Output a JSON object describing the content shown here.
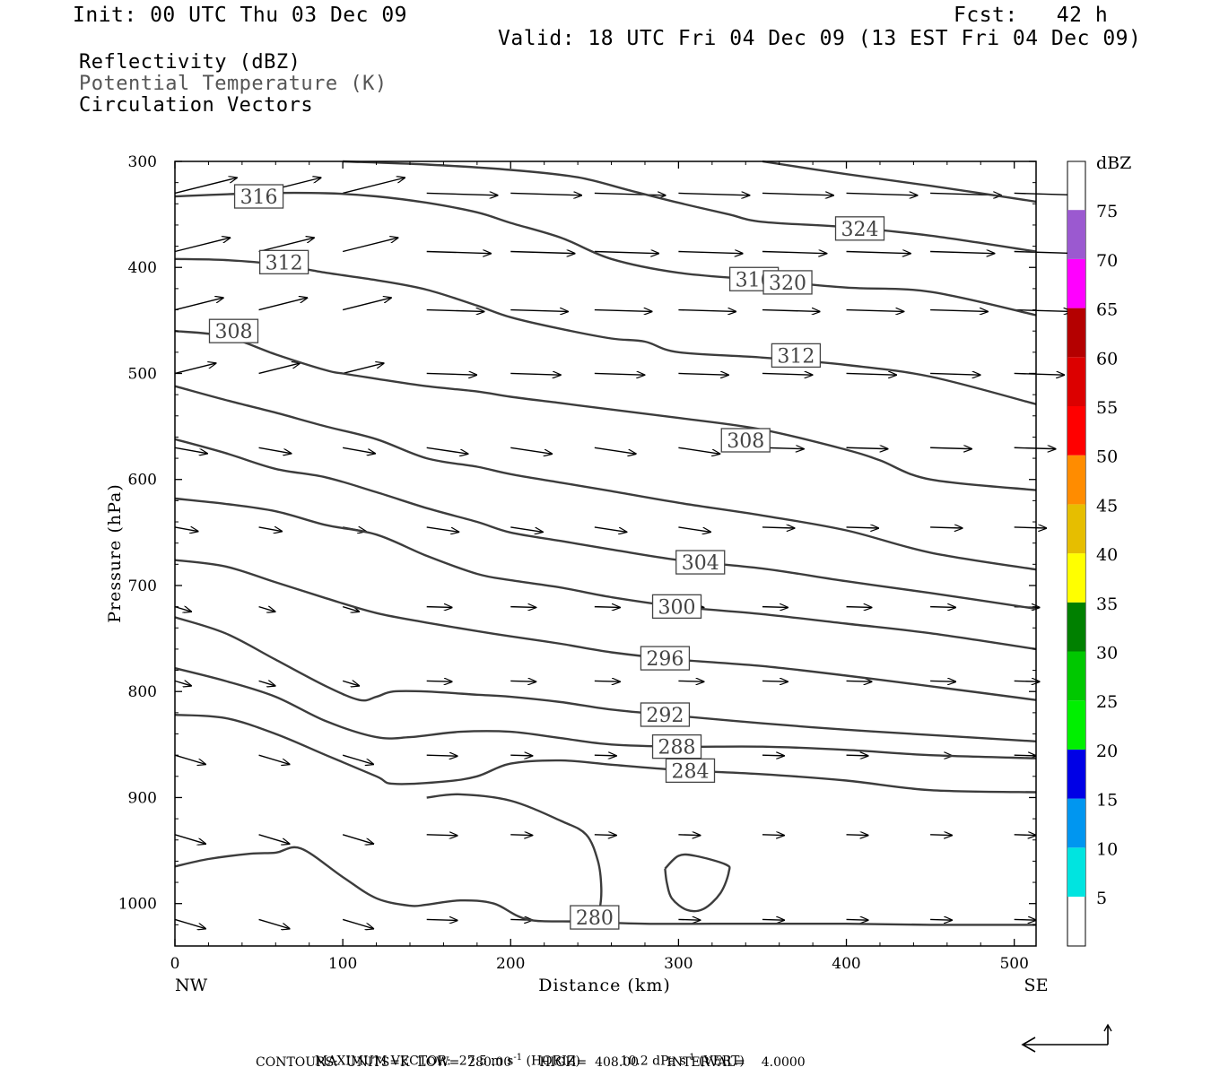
{
  "header": {
    "init": "Init: 00 UTC Thu 03 Dec 09",
    "fcst": "Fcst:   42 h",
    "valid": "Valid: 18 UTC Fri 04 Dec 09 (13 EST Fri 04 Dec 09)"
  },
  "fields": {
    "reflectivity": "Reflectivity (dBZ)",
    "potential_temperature": "Potential Temperature (K)",
    "circulation": "Circulation Vectors"
  },
  "footer": {
    "max_vector_label": "MAXIMUM VECTOR:",
    "max_vector_horiz": "27.5 m s",
    "horiz_exp": "-1",
    "horiz_tag": "(HORIZ)",
    "max_vector_vert": "10.2 dPa s",
    "vert_exp": "-1",
    "vert_tag": "(VERT)",
    "contours": "CONTOURS:  UNITS=K  LOW=  280.00       HIGH=  408.00       INTERVAL=    4.0000"
  },
  "chart_data": {
    "type": "line",
    "title": "Potential Temperature (K)",
    "xlabel": "Distance (km)",
    "ylabel": "Pressure (hPa)",
    "xlim": [
      0,
      513
    ],
    "ylim": [
      300,
      1040
    ],
    "y_inverted": true,
    "x_ticks": [
      0,
      100,
      200,
      300,
      400,
      500
    ],
    "y_ticks": [
      300,
      400,
      500,
      600,
      700,
      800,
      900,
      1000
    ],
    "x_end_labels": {
      "left": "NW",
      "right": "SE"
    },
    "contour_units": "K",
    "contour_low": 280.0,
    "contour_high": 408.0,
    "contour_interval": 4.0,
    "isentropes": [
      {
        "theta": 280,
        "label": "280",
        "x": [
          0,
          20,
          45,
          60,
          75,
          100,
          120,
          140,
          150,
          170,
          190,
          210,
          240,
          280,
          320,
          360,
          400,
          450,
          513
        ],
        "p": [
          965,
          958,
          953,
          952,
          948,
          975,
          995,
          1002,
          1001,
          997,
          1000,
          1015,
          1017,
          1019,
          1019,
          1019,
          1019,
          1020,
          1020
        ]
      },
      {
        "theta": 280,
        "label": "",
        "x": [
          150,
          170,
          200,
          230,
          245,
          252,
          254,
          253,
          250
        ],
        "p": [
          900,
          897,
          903,
          922,
          935,
          960,
          985,
          1005,
          1015
        ]
      },
      {
        "theta": 280,
        "label": "",
        "x": [
          292,
          300,
          310,
          328,
          330,
          325,
          315,
          305,
          296,
          293,
          292
        ],
        "p": [
          967,
          955,
          955,
          963,
          970,
          990,
          1005,
          1006,
          995,
          980,
          967
        ]
      },
      {
        "theta": 284,
        "label": "284",
        "x": [
          0,
          30,
          60,
          90,
          120,
          130,
          160,
          180,
          200,
          230,
          260,
          300,
          350,
          400,
          450,
          513
        ],
        "p": [
          822,
          825,
          840,
          860,
          880,
          887,
          885,
          880,
          868,
          865,
          869,
          874,
          878,
          884,
          893,
          895
        ]
      },
      {
        "theta": 288,
        "label": "288",
        "x": [
          0,
          30,
          60,
          90,
          120,
          140,
          170,
          200,
          230,
          260,
          300,
          350,
          400,
          450,
          513
        ],
        "p": [
          778,
          790,
          805,
          828,
          843,
          843,
          838,
          838,
          844,
          850,
          852,
          852,
          855,
          860,
          863
        ]
      },
      {
        "theta": 292,
        "label": "292",
        "x": [
          0,
          30,
          60,
          90,
          110,
          120,
          130,
          150,
          180,
          200,
          230,
          260,
          300,
          350,
          400,
          450,
          513
        ],
        "p": [
          730,
          745,
          770,
          795,
          808,
          805,
          800,
          800,
          803,
          805,
          810,
          817,
          823,
          830,
          836,
          841,
          847
        ]
      },
      {
        "theta": 296,
        "label": "296",
        "x": [
          0,
          30,
          60,
          90,
          120,
          150,
          180,
          200,
          230,
          260,
          300,
          350,
          400,
          450,
          513
        ],
        "p": [
          676,
          682,
          697,
          712,
          726,
          735,
          743,
          748,
          755,
          763,
          770,
          776,
          785,
          795,
          808
        ]
      },
      {
        "theta": 300,
        "label": "300",
        "x": [
          0,
          30,
          60,
          90,
          120,
          150,
          180,
          200,
          230,
          260,
          300,
          350,
          400,
          450,
          513
        ],
        "p": [
          618,
          623,
          630,
          643,
          652,
          672,
          689,
          695,
          702,
          711,
          720,
          727,
          736,
          745,
          760
        ]
      },
      {
        "theta": 304,
        "label": "304",
        "x": [
          0,
          30,
          60,
          90,
          120,
          150,
          180,
          200,
          230,
          260,
          300,
          350,
          400,
          450,
          513
        ],
        "p": [
          562,
          575,
          590,
          598,
          612,
          627,
          640,
          650,
          658,
          666,
          676,
          684,
          696,
          707,
          722
        ]
      },
      {
        "theta": 308,
        "label": "308",
        "x": [
          0,
          30,
          60,
          90,
          120,
          150,
          180,
          200,
          230,
          260,
          300,
          350,
          400,
          450,
          513
        ],
        "p": [
          512,
          525,
          537,
          550,
          562,
          580,
          588,
          595,
          603,
          611,
          622,
          634,
          648,
          669,
          685
        ]
      },
      {
        "theta": 312,
        "label": "312",
        "x": [
          0,
          30,
          60,
          90,
          100,
          120,
          150,
          180,
          200,
          230,
          260,
          300,
          350,
          400,
          420,
          450,
          513
        ],
        "p": [
          460,
          465,
          482,
          497,
          500,
          505,
          512,
          517,
          522,
          528,
          534,
          542,
          553,
          572,
          582,
          600,
          610
        ]
      },
      {
        "theta": 316,
        "label": "316",
        "x": [
          0,
          30,
          60,
          90,
          120,
          150,
          180,
          200,
          230,
          260,
          280,
          300,
          350,
          400,
          450,
          513
        ],
        "p": [
          392,
          393,
          397,
          405,
          412,
          421,
          436,
          447,
          458,
          467,
          470,
          480,
          485,
          492,
          503,
          529
        ]
      },
      {
        "theta": 320,
        "label": "320",
        "x": [
          0,
          50,
          90,
          120,
          150,
          180,
          200,
          230,
          260,
          300,
          350,
          400,
          450,
          513
        ],
        "p": [
          333,
          330,
          330,
          333,
          339,
          348,
          358,
          372,
          392,
          405,
          412,
          419,
          423,
          445
        ]
      },
      {
        "theta": 324,
        "label": "324",
        "x": [
          100,
          150,
          200,
          240,
          270,
          300,
          330,
          350,
          400,
          450,
          513
        ],
        "p": [
          300,
          303,
          308,
          315,
          327,
          339,
          350,
          357,
          362,
          370,
          385
        ]
      },
      {
        "theta": 328,
        "label": "",
        "x": [
          350,
          400,
          450,
          513
        ],
        "p": [
          300,
          312,
          323,
          338
        ]
      }
    ],
    "colorbar": {
      "label": "dBZ",
      "ticks": [
        5,
        10,
        15,
        20,
        25,
        30,
        35,
        40,
        45,
        50,
        55,
        60,
        65,
        70,
        75
      ],
      "colors": [
        "#00e4e0",
        "#0096f0",
        "#0000e6",
        "#00f000",
        "#00c800",
        "#008000",
        "#ffff00",
        "#e6be00",
        "#ff8c00",
        "#ff0000",
        "#dc0000",
        "#b40000",
        "#ff00ff",
        "#9b59d0"
      ]
    },
    "circulation_vectors": {
      "max_horiz": 27.5,
      "max_horiz_units": "m s-1",
      "max_vert": 10.2,
      "max_vert_units": "dPa s-1"
    }
  }
}
